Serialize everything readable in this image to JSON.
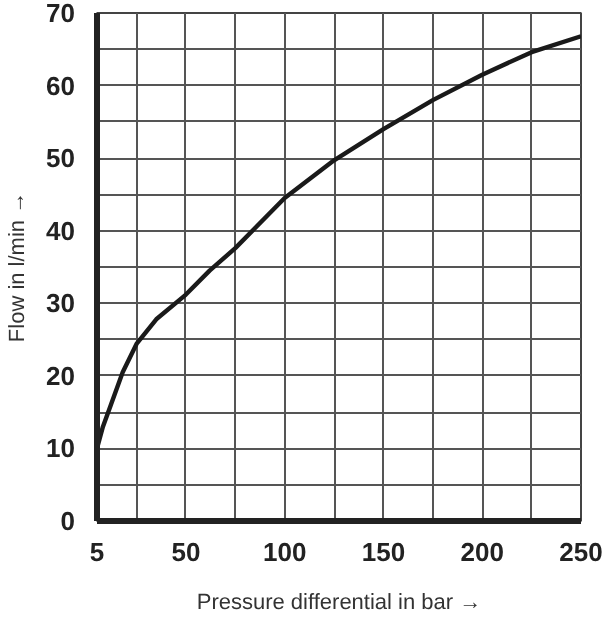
{
  "chart_data": {
    "type": "line",
    "xlabel": "Pressure differential in bar →",
    "ylabel": "Flow in l/min →",
    "x": [
      5,
      8,
      12,
      18,
      25,
      35,
      50,
      62,
      75,
      100,
      125,
      150,
      175,
      200,
      225,
      250
    ],
    "series": [
      {
        "color": "#1a1a1a",
        "values": [
          10,
          13,
          16,
          20.5,
          24.4,
          27.8,
          31.2,
          34.5,
          37.6,
          44.5,
          49.7,
          54,
          58,
          61.5,
          64.6,
          66.8
        ]
      }
    ],
    "xlim": [
      5,
      250
    ],
    "ylim": [
      0,
      70
    ],
    "xticks": [
      5,
      {
        "value": 25,
        "label": null
      },
      50,
      {
        "value": 75,
        "label": null
      },
      100,
      {
        "value": 125,
        "label": null
      },
      150,
      {
        "value": 175,
        "label": null
      },
      200,
      {
        "value": 225,
        "label": null
      },
      250
    ],
    "yticks": [
      0,
      {
        "value": 5,
        "label": null
      },
      10,
      {
        "value": 15,
        "label": null
      },
      20,
      {
        "value": 25,
        "label": null
      },
      30,
      {
        "value": 35,
        "label": null
      },
      40,
      {
        "value": 45,
        "label": null
      },
      50,
      {
        "value": 55,
        "label": null
      },
      60,
      {
        "value": 65,
        "label": null
      },
      70
    ],
    "grid": true,
    "marker": "none",
    "line_style": "solid"
  }
}
